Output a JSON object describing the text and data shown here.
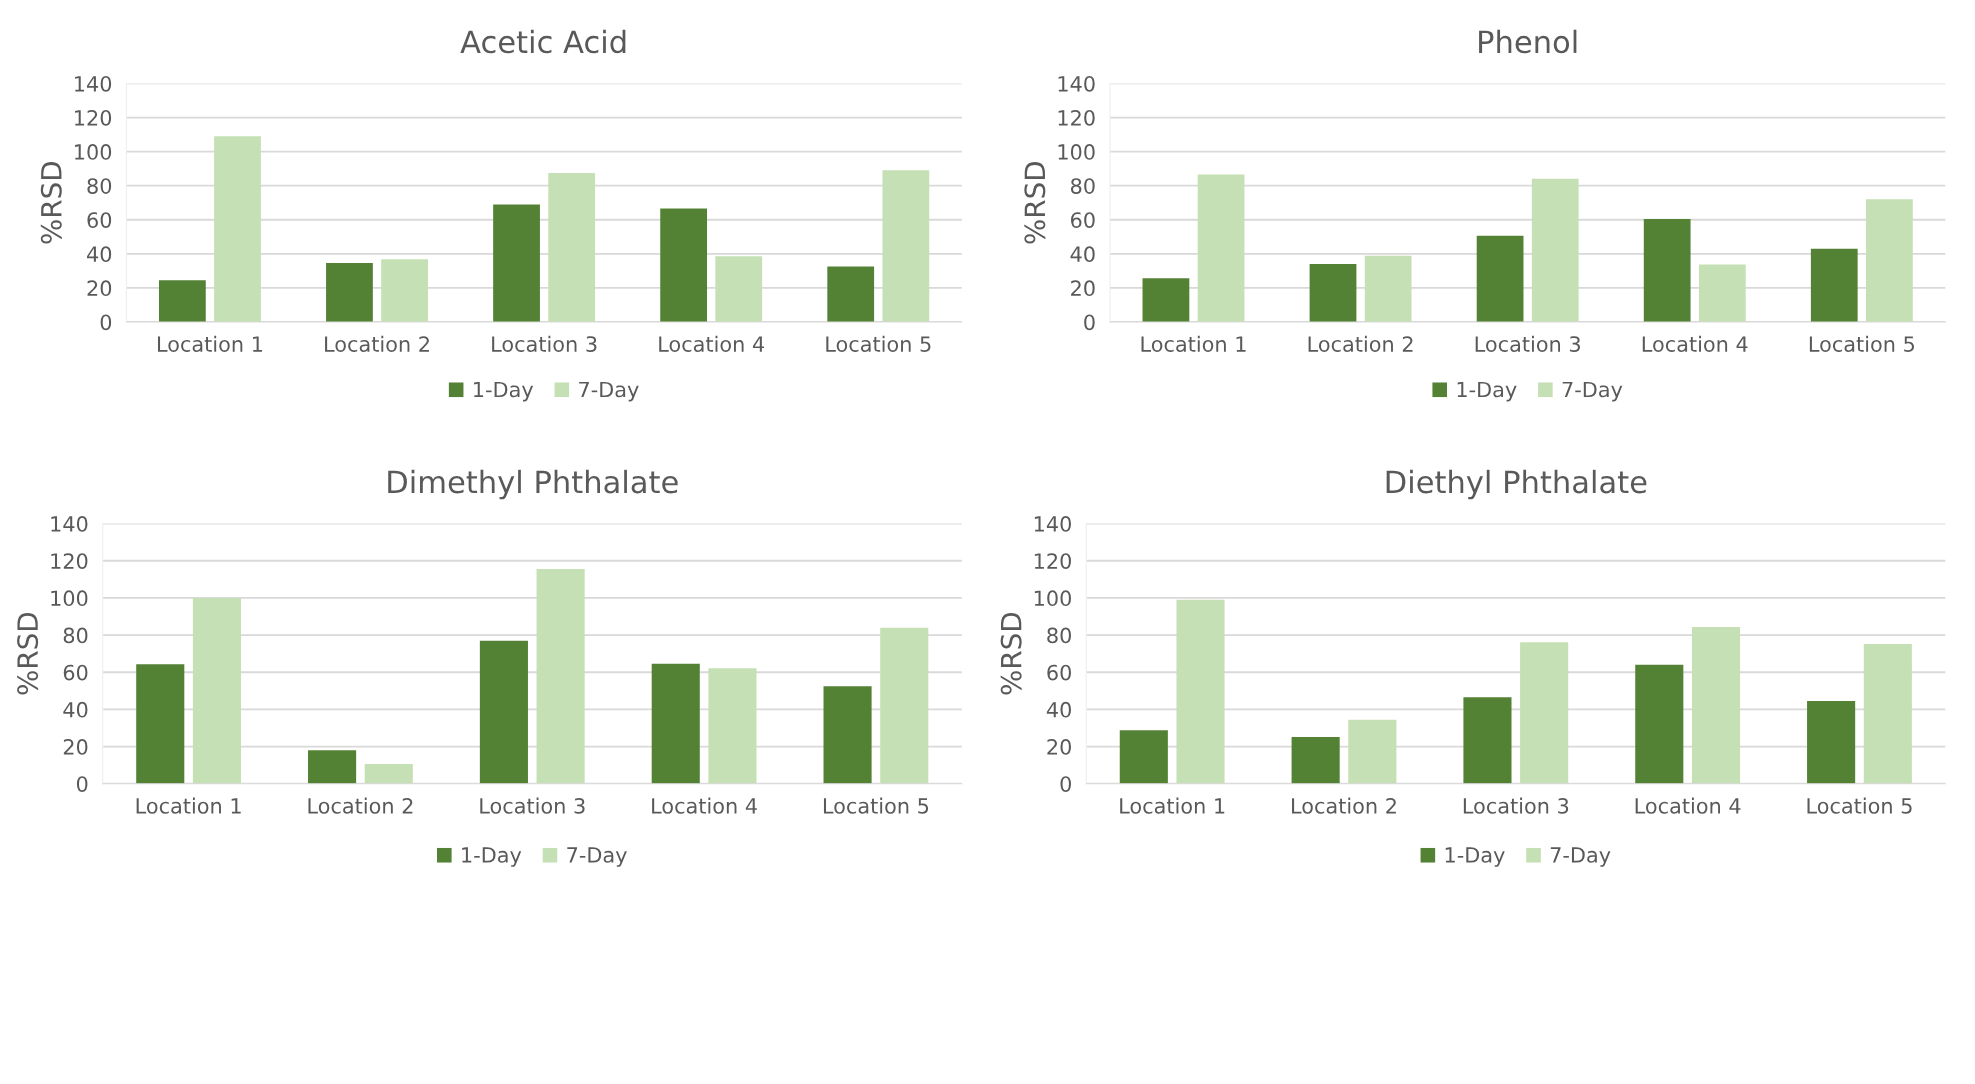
{
  "chart_data": [
    {
      "type": "bar",
      "title": "Acetic Acid",
      "ylabel": "%RSD",
      "categories": [
        "Location 1",
        "Location 2",
        "Location 3",
        "Location 4",
        "Location 5"
      ],
      "series": [
        {
          "name": "1-Day",
          "color": "#548235",
          "values": [
            24.5,
            34.6,
            68.9,
            66.6,
            32.6
          ]
        },
        {
          "name": "7-Day",
          "color": "#c5e0b4",
          "values": [
            109,
            36.8,
            87.4,
            38.5,
            89.1
          ]
        }
      ],
      "ylim": [
        0,
        140
      ],
      "yticks": [
        0,
        20,
        40,
        60,
        80,
        100,
        120,
        140
      ],
      "grid": "y",
      "legend": "bottom"
    },
    {
      "type": "bar",
      "title": "Phenol",
      "ylabel": "%RSD",
      "categories": [
        "Location 1",
        "Location 2",
        "Location 3",
        "Location 4",
        "Location 5"
      ],
      "series": [
        {
          "name": "1-Day",
          "color": "#548235",
          "values": [
            25.6,
            34,
            50.6,
            60.4,
            43
          ]
        },
        {
          "name": "7-Day",
          "color": "#c5e0b4",
          "values": [
            86.6,
            38.8,
            84,
            33.7,
            72
          ]
        }
      ],
      "ylim": [
        0,
        140
      ],
      "yticks": [
        0,
        20,
        40,
        60,
        80,
        100,
        120,
        140
      ],
      "grid": "y",
      "legend": "bottom"
    },
    {
      "type": "bar",
      "title": "Dimethyl Phthalate",
      "ylabel": "%RSD",
      "categories": [
        "Location 1",
        "Location 2",
        "Location 3",
        "Location 4",
        "Location 5"
      ],
      "series": [
        {
          "name": "1-Day",
          "color": "#548235",
          "values": [
            64.3,
            18,
            77,
            64.6,
            52.4
          ]
        },
        {
          "name": "7-Day",
          "color": "#c5e0b4",
          "values": [
            100,
            10.6,
            115.6,
            62.2,
            83.9
          ]
        }
      ],
      "ylim": [
        0,
        140
      ],
      "yticks": [
        0,
        20,
        40,
        60,
        80,
        100,
        120,
        140
      ],
      "grid": "y",
      "legend": "bottom"
    },
    {
      "type": "bar",
      "title": "Diethyl Phthalate",
      "ylabel": "%RSD",
      "categories": [
        "Location 1",
        "Location 2",
        "Location 3",
        "Location 4",
        "Location 5"
      ],
      "series": [
        {
          "name": "1-Day",
          "color": "#548235",
          "values": [
            28.8,
            25.1,
            46.6,
            64,
            44.5
          ]
        },
        {
          "name": "7-Day",
          "color": "#c5e0b4",
          "values": [
            99,
            34.4,
            76.2,
            84.4,
            75.2
          ]
        }
      ],
      "ylim": [
        0,
        140
      ],
      "yticks": [
        0,
        20,
        40,
        60,
        80,
        100,
        120,
        140
      ],
      "grid": "y",
      "legend": "bottom"
    }
  ]
}
